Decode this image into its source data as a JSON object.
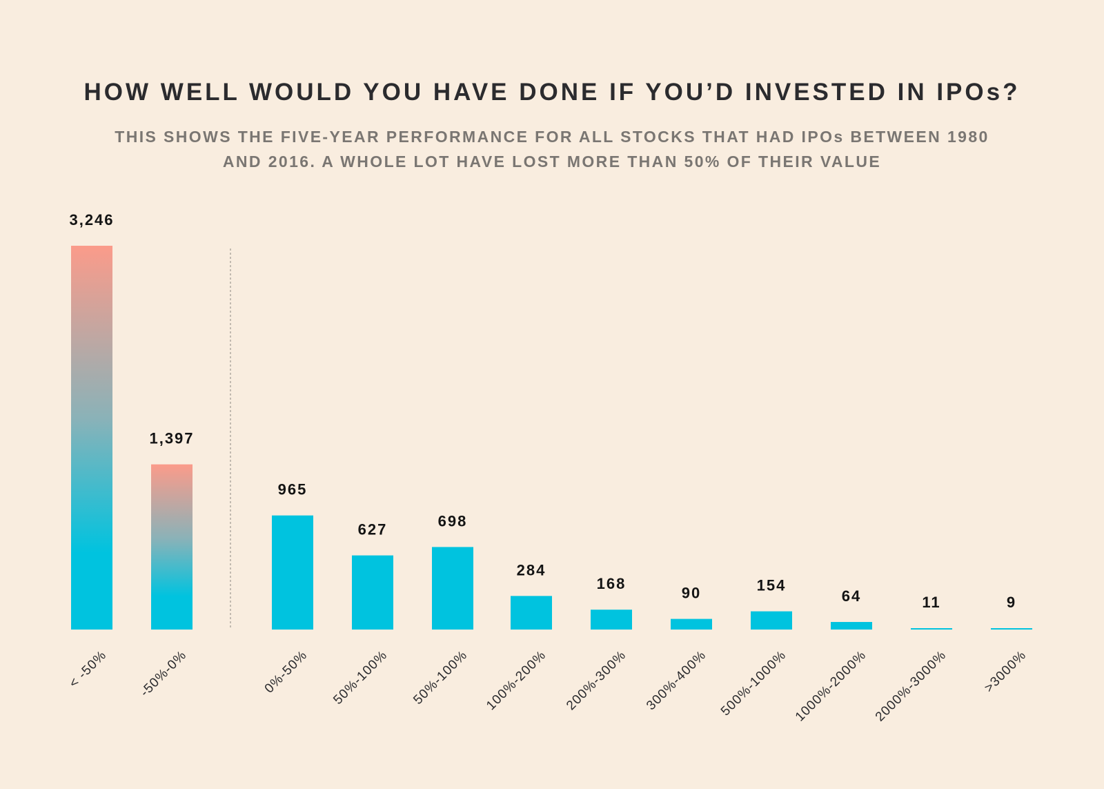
{
  "header": {
    "title": "HOW WELL WOULD YOU HAVE DONE IF YOU’D INVESTED IN IPOs?",
    "subtitle": "THIS SHOWS THE FIVE-YEAR PERFORMANCE FOR ALL STOCKS THAT HAD IPOs BETWEEN 1980 AND 2016. A WHOLE LOT HAVE LOST MORE THAN 50% OF THEIR VALUE"
  },
  "colors": {
    "background": "#f9eddf",
    "positive_bar": "#00c3df",
    "negative_gradient_top": "#fb9b8a",
    "negative_gradient_bottom": "#00c3df",
    "divider": "#8a8682"
  },
  "chart_data": {
    "type": "bar",
    "title": "HOW WELL WOULD YOU HAVE DONE IF YOU’D INVESTED IN IPOs?",
    "xlabel": "",
    "ylabel": "",
    "ylim": [
      0,
      3246
    ],
    "grid": false,
    "categories": [
      "< -50%",
      "-50%-0%",
      "0%-50%",
      "50%-100%",
      "50%-100%",
      "100%-200%",
      "200%-300%",
      "300%-400%",
      "500%-1000%",
      "1000%-2000%",
      "2000%-3000%",
      ">3000%"
    ],
    "values": [
      3246,
      1397,
      965,
      627,
      698,
      284,
      168,
      90,
      154,
      64,
      11,
      9
    ],
    "value_labels": [
      "3,246",
      "1,397",
      "965",
      "627",
      "698",
      "284",
      "168",
      "90",
      "154",
      "64",
      "11",
      "9"
    ],
    "negative_count": 2
  }
}
